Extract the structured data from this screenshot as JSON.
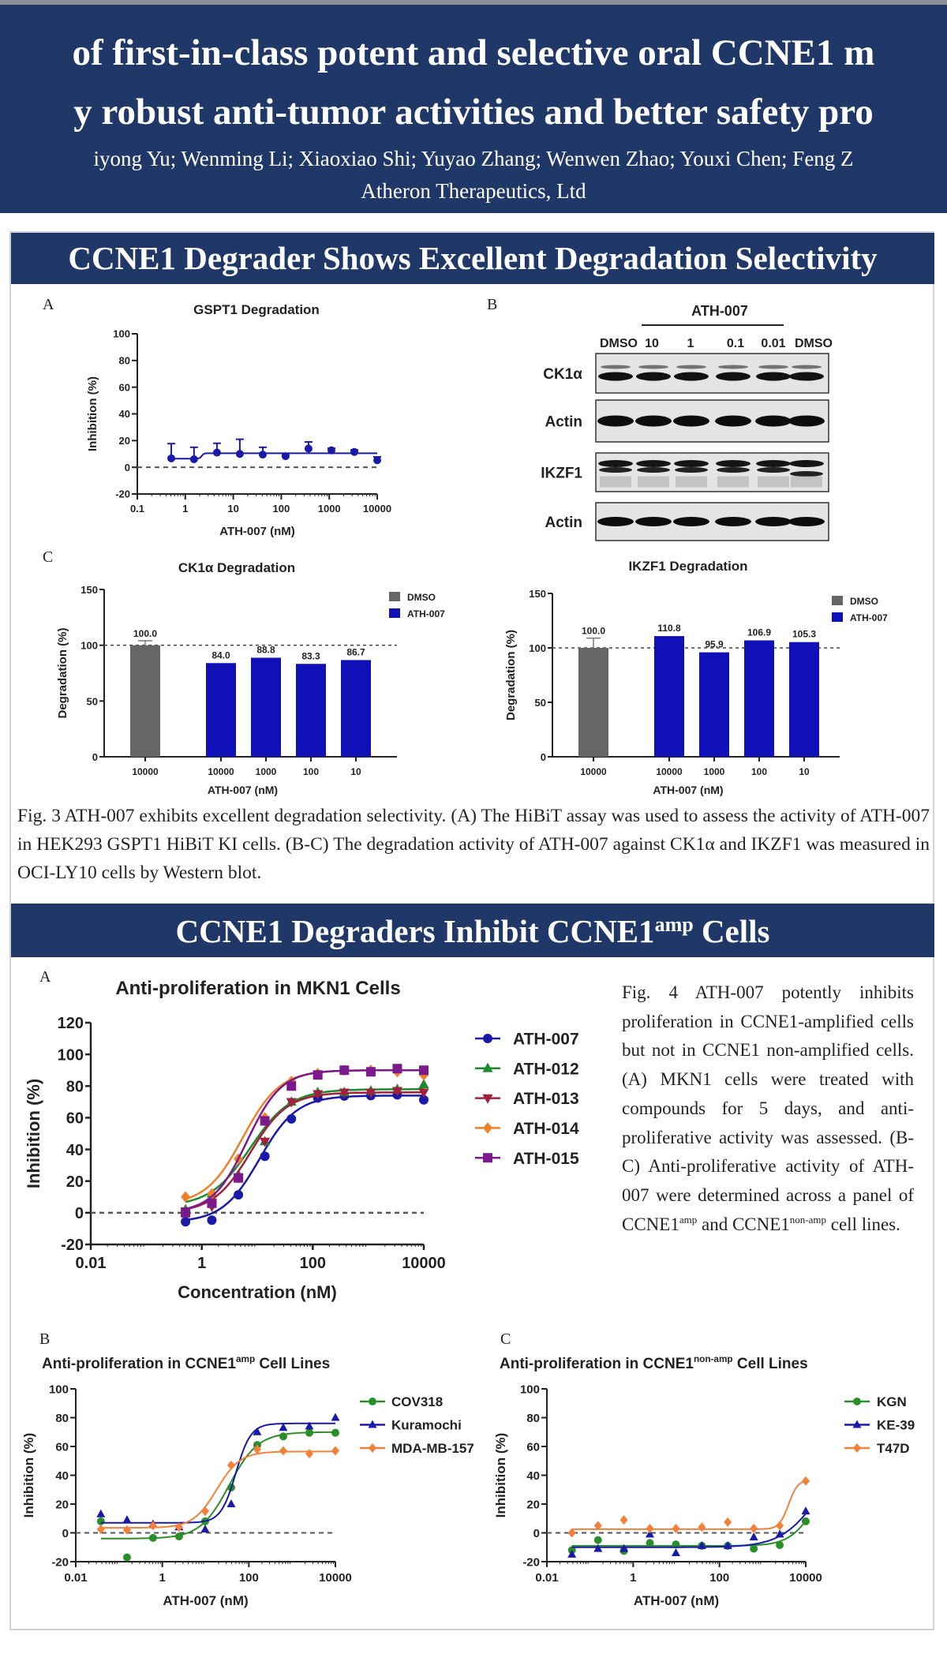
{
  "header": {
    "title_line1": "of first-in-class potent and selective oral CCNE1 m",
    "title_line2": "y robust anti-tumor activities and better safety pro",
    "authors": "iyong Yu; Wenming Li; Xiaoxiao Shi; Yuyao Zhang; Wenwen Zhao; Youxi Chen; Feng Z",
    "affiliation": "Atheron Therapeutics, Ltd"
  },
  "colors": {
    "navy": "#1f3868",
    "blue": "#1010b8",
    "gray_bar": "#666666"
  },
  "section1": {
    "title": "CCNE1 Degrader Shows Excellent Degradation Selectivity",
    "panel_labels": [
      "A",
      "B",
      "C"
    ],
    "caption": "Fig. 3 ATH-007 exhibits excellent degradation selectivity. (A) The HiBiT assay was used to assess the activity of ATH-007 in HEK293 GSPT1 HiBiT KI cells. (B-C) The degradation activity of ATH-007 against CK1α and IKZF1 was measured in OCI-LY10 cells by Western blot."
  },
  "section2": {
    "title_pre": "CCNE1 Degraders Inhibit CCNE1",
    "title_sup": "amp",
    "title_post": " Cells",
    "panel_labels": [
      "A",
      "B",
      "C"
    ],
    "caption_a": "Fig. 4 ATH-007 potently inhibits proliferation in CCNE1-amplified cells but not in CCNE1 non-amplified cells. (A) MKN1 cells were treated with compounds for 5 days, and anti-proliferative activity was assessed. (B-C) Anti-proliferative activity of ATH-007 were determined across a panel of CCNE1",
    "caption_sup1": "amp",
    "caption_b": " and CCNE1",
    "caption_sup2": "non-amp",
    "caption_c": " cell lines."
  },
  "western_blot": {
    "group_label": "ATH-007",
    "lane_labels": [
      "DMSO",
      "10",
      "1",
      "0.1",
      "0.01",
      "DMSO"
    ],
    "rows": [
      "CK1α",
      "Actin",
      "IKZF1",
      "Actin"
    ]
  },
  "chart_data": [
    {
      "type": "line",
      "title": "GSPT1 Degradation",
      "xlabel": "ATH-007 (nM)",
      "ylabel": "Inhibition (%)",
      "xscale": "log",
      "xlim": [
        0.1,
        10000
      ],
      "ylim": [
        -20,
        100
      ],
      "xticks": [
        "0.1",
        "1",
        "10",
        "100",
        "1000",
        "10000"
      ],
      "yticks": [
        "-20",
        "0",
        "20",
        "40",
        "60",
        "80",
        "100"
      ],
      "legend": "none",
      "series": [
        {
          "name": "ATH-007",
          "color": "#1a1aa8",
          "marker": "circle",
          "x": [
            0.51,
            1.52,
            4.57,
            13.7,
            41.2,
            123,
            370,
            1111,
            3333,
            10000
          ],
          "y": [
            6.7,
            6.0,
            11.0,
            10.0,
            9.5,
            8.3,
            14.0,
            12.7,
            11.5,
            5.3
          ],
          "err": [
            11,
            9,
            7,
            11,
            5.5,
            1,
            5,
            1.5,
            1.5,
            2.5
          ],
          "fit": {
            "bottom": 6.5,
            "top": 10.5,
            "ec50": 2.2,
            "hill": 20
          }
        }
      ]
    },
    {
      "type": "bar",
      "title": "CK1α Degradation",
      "xlabel": "ATH-007 (nM)",
      "ylabel": "Degradation (%)",
      "ylim": [
        0,
        150
      ],
      "yticks": [
        "0",
        "50",
        "100",
        "150"
      ],
      "categories": [
        "10000",
        "10000",
        "1000",
        "100",
        "10"
      ],
      "groups": [
        "DMSO",
        "ATH-007",
        "ATH-007",
        "ATH-007",
        "ATH-007"
      ],
      "values": [
        100.0,
        84.0,
        88.8,
        83.3,
        86.7
      ],
      "labels": [
        "100.0",
        "84.0",
        "88.8",
        "83.3",
        "86.7"
      ],
      "dmso_err": 4,
      "reference_line": 100,
      "legend": [
        "DMSO",
        "ATH-007"
      ],
      "legend_position": "top-right"
    },
    {
      "type": "bar",
      "title": "IKZF1 Degradation",
      "xlabel": "ATH-007 (nM)",
      "ylabel": "Degradation (%)",
      "ylim": [
        0,
        150
      ],
      "yticks": [
        "0",
        "50",
        "100",
        "150"
      ],
      "categories": [
        "10000",
        "10000",
        "1000",
        "100",
        "10"
      ],
      "groups": [
        "DMSO",
        "ATH-007",
        "ATH-007",
        "ATH-007",
        "ATH-007"
      ],
      "values": [
        100.0,
        110.8,
        95.9,
        106.9,
        105.3
      ],
      "labels": [
        "100.0",
        "110.8",
        "95.9",
        "106.9",
        "105.3"
      ],
      "dmso_err": 9,
      "reference_line": 100,
      "legend": [
        "DMSO",
        "ATH-007"
      ],
      "legend_position": "top-right"
    },
    {
      "type": "line",
      "title": "Anti-proliferation in MKN1 Cells",
      "xlabel": "Concentration (nM)",
      "ylabel": "Inhibition (%)",
      "xscale": "log",
      "xlim": [
        0.01,
        10000
      ],
      "ylim": [
        -20,
        120
      ],
      "xticks": [
        "0.01",
        "1",
        "100",
        "10000"
      ],
      "yticks": [
        "-20",
        "0",
        "20",
        "40",
        "60",
        "80",
        "100",
        "120"
      ],
      "legend": "right",
      "series": [
        {
          "name": "ATH-007",
          "color": "#1a1aa8",
          "marker": "circle",
          "x": [
            0.51,
            1.52,
            4.57,
            13.7,
            41.2,
            123,
            370,
            1111,
            3333,
            10000
          ],
          "y": [
            -5.7,
            -4.7,
            11.3,
            35.7,
            59.3,
            72.5,
            73.7,
            74,
            74.5,
            71.3
          ],
          "fit": {
            "bottom": -6,
            "top": 74,
            "ec50": 11,
            "hill": 1.3
          }
        },
        {
          "name": "ATH-012",
          "color": "#1e8a2e",
          "marker": "triangle-up",
          "x": [
            0.51,
            1.52,
            4.57,
            13.7,
            41.2,
            123,
            370,
            1111,
            3333,
            10000
          ],
          "y": [
            2,
            12,
            24,
            45,
            70,
            76,
            76,
            77,
            78,
            81
          ],
          "fit": {
            "bottom": 4,
            "top": 78,
            "ec50": 7.5,
            "hill": 1.2
          }
        },
        {
          "name": "ATH-013",
          "color": "#a3203e",
          "marker": "triangle-down",
          "x": [
            0.51,
            1.52,
            4.57,
            13.7,
            41.2,
            123,
            370,
            1111,
            3333,
            10000
          ],
          "y": [
            1,
            4,
            22,
            45,
            70,
            75,
            76,
            76,
            77,
            76
          ],
          "fit": {
            "bottom": 0,
            "top": 76,
            "ec50": 7.5,
            "hill": 1.3
          }
        },
        {
          "name": "ATH-014",
          "color": "#f07f2a",
          "marker": "diamond",
          "x": [
            0.51,
            1.52,
            4.57,
            13.7,
            41.2,
            123,
            370,
            1111,
            3333,
            10000
          ],
          "y": [
            10,
            12,
            34,
            60,
            83,
            88,
            90,
            90,
            89,
            87
          ],
          "fit": {
            "bottom": 5,
            "top": 90,
            "ec50": 5.5,
            "hill": 1.3
          }
        },
        {
          "name": "ATH-015",
          "color": "#7a1a8c",
          "marker": "square",
          "x": [
            0.51,
            1.52,
            4.57,
            13.7,
            41.2,
            123,
            370,
            1111,
            3333,
            10000
          ],
          "y": [
            0,
            6,
            22,
            58,
            80,
            87,
            90,
            89,
            91,
            90
          ],
          "fit": {
            "bottom": 0,
            "top": 90,
            "ec50": 6.5,
            "hill": 1.4
          }
        }
      ]
    },
    {
      "type": "line",
      "title_pre": "Anti-proliferation in CCNE1",
      "title_sup": "amp",
      "title_post": " Cell Lines",
      "xlabel": "ATH-007 (nM)",
      "ylabel": "Inhibition (%)",
      "xscale": "log",
      "xlim": [
        0.01,
        10000
      ],
      "ylim": [
        -20,
        100
      ],
      "xticks": [
        "0.01",
        "1",
        "100",
        "10000"
      ],
      "yticks": [
        "-20",
        "0",
        "20",
        "40",
        "60",
        "80",
        "100"
      ],
      "legend": "right",
      "series": [
        {
          "name": "COV318",
          "color": "#2a8f2a",
          "marker": "circle",
          "x": [
            0.038,
            0.153,
            0.61,
            2.44,
            9.77,
            39.1,
            156,
            625,
            2500,
            10000
          ],
          "y": [
            8,
            -17,
            -3.5,
            -2.5,
            8,
            31.5,
            61,
            67,
            69.5,
            69.5
          ],
          "fit": {
            "bottom": -4,
            "top": 70,
            "ec50": 35,
            "hill": 1.3
          }
        },
        {
          "name": "Kuramochi",
          "color": "#1a1aa8",
          "marker": "triangle-up",
          "x": [
            0.038,
            0.153,
            0.61,
            2.44,
            9.77,
            39.1,
            156,
            625,
            2500,
            10000
          ],
          "y": [
            13,
            9,
            6,
            4,
            2.5,
            20,
            70,
            73,
            74,
            80
          ],
          "fit": {
            "bottom": 7,
            "top": 76,
            "ec50": 50,
            "hill": 2.5
          }
        },
        {
          "name": "MDA-MB-157",
          "color": "#f0803c",
          "marker": "diamond",
          "x": [
            0.038,
            0.153,
            0.61,
            2.44,
            9.77,
            39.1,
            156,
            625,
            2500,
            10000
          ],
          "y": [
            2.5,
            2,
            5,
            4,
            15,
            47,
            58,
            57,
            55,
            57
          ],
          "fit": {
            "bottom": 3.5,
            "top": 56.5,
            "ec50": 18,
            "hill": 1.6
          }
        }
      ]
    },
    {
      "type": "line",
      "title_pre": "Anti-proliferation in CCNE1",
      "title_sup": "non-amp",
      "title_post": " Cell Lines",
      "xlabel": "ATH-007 (nM)",
      "ylabel": "Inhibition (%)",
      "xscale": "log",
      "xlim": [
        0.01,
        10000
      ],
      "ylim": [
        -20,
        100
      ],
      "xticks": [
        "0.01",
        "1",
        "100",
        "10000"
      ],
      "yticks": [
        "-20",
        "0",
        "20",
        "40",
        "60",
        "80",
        "100"
      ],
      "legend": "right",
      "series": [
        {
          "name": "KGN",
          "color": "#2a8f2a",
          "marker": "circle",
          "x": [
            0.038,
            0.153,
            0.61,
            2.44,
            9.77,
            39.1,
            156,
            625,
            2500,
            10000
          ],
          "y": [
            -12,
            -5,
            -12.5,
            -7,
            -8,
            -9,
            -9,
            -11,
            -8.5,
            8
          ],
          "fit": {
            "bottom": -9,
            "top": 40,
            "ec50": 15000,
            "hill": 1.5
          }
        },
        {
          "name": "KE-39",
          "color": "#1a1aa8",
          "marker": "triangle-up",
          "x": [
            0.038,
            0.153,
            0.61,
            2.44,
            9.77,
            39.1,
            156,
            625,
            2500,
            10000
          ],
          "y": [
            -15,
            -11,
            -11,
            -1,
            -14,
            -9,
            -9,
            -3,
            -1,
            15
          ],
          "fit": {
            "bottom": -10,
            "top": 60,
            "ec50": 20000,
            "hill": 1
          }
        },
        {
          "name": "T47D",
          "color": "#f0803c",
          "marker": "diamond",
          "x": [
            0.038,
            0.153,
            0.61,
            2.44,
            9.77,
            39.1,
            156,
            625,
            2500,
            10000
          ],
          "y": [
            0,
            5,
            9,
            3,
            3,
            4,
            7.5,
            3,
            5,
            36
          ],
          "fit": {
            "bottom": 2.5,
            "top": 37,
            "ec50": 4000,
            "hill": 4
          }
        }
      ]
    }
  ]
}
